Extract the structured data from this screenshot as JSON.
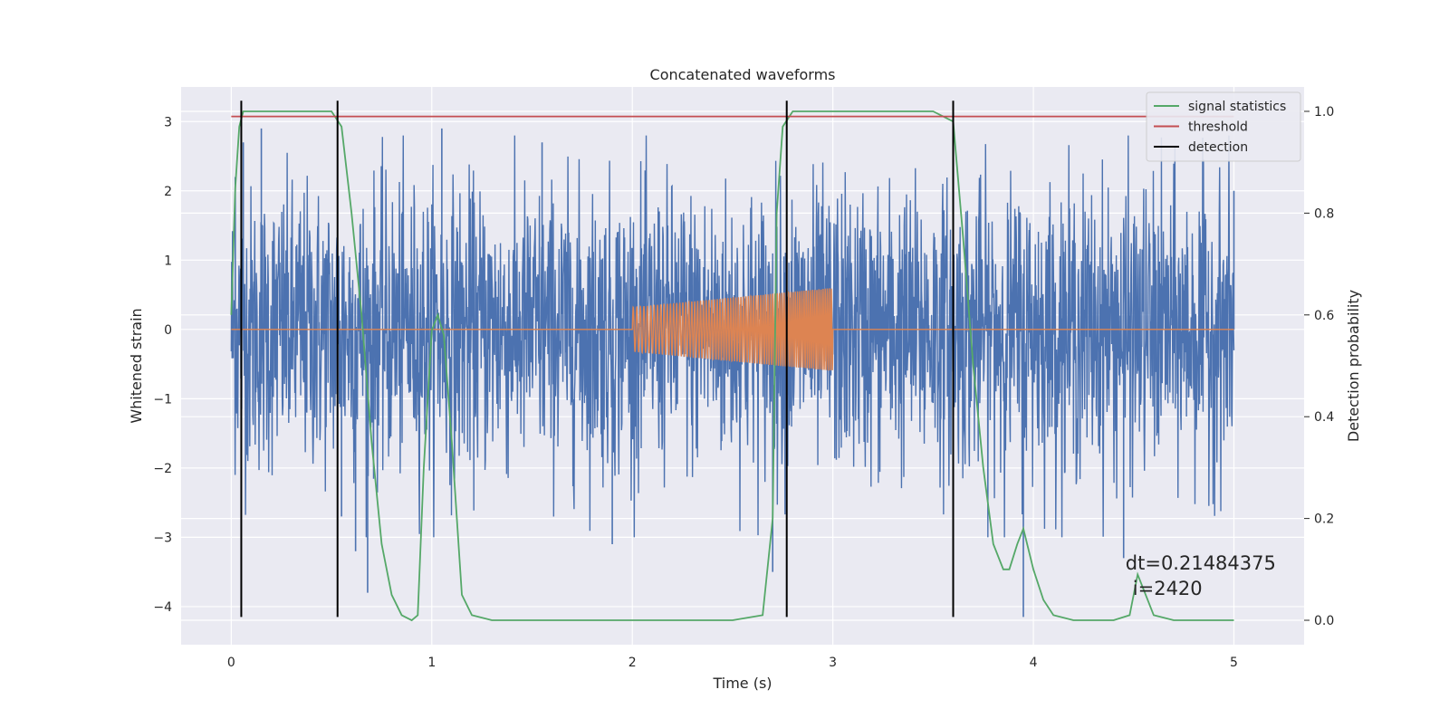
{
  "chart_data": {
    "type": "line",
    "title": "Concatenated waveforms",
    "xlabel": "Time (s)",
    "ylabel": "Whitened strain",
    "ylabel_right": "Detection probability",
    "xlim": [
      -0.25,
      5.35
    ],
    "ylim": [
      -4.55,
      3.5
    ],
    "ylim_right": [
      -0.048,
      1.048
    ],
    "xticks": [
      0,
      1,
      2,
      3,
      4,
      5
    ],
    "yticks": [
      3,
      2,
      1,
      0,
      -1,
      -2,
      -3,
      -4
    ],
    "yticks_right": [
      1.0,
      0.8,
      0.6,
      0.4,
      0.2,
      0.0
    ],
    "xtick_labels": [
      "0",
      "1",
      "2",
      "3",
      "4",
      "5"
    ],
    "ytick_labels": [
      "3",
      "2",
      "1",
      "0",
      "−1",
      "−2",
      "−3",
      "−4"
    ],
    "ytick_right_labels": [
      "1.0",
      "0.8",
      "0.6",
      "0.4",
      "0.2",
      "0.0"
    ],
    "grid": true,
    "legend_position": "top-right",
    "whitened_noise": {
      "color": "#4c72b0",
      "x_range": [
        0,
        5
      ],
      "typical_amplitude": 1.2,
      "extremes": [
        {
          "x": 0.02,
          "y": 2.2
        },
        {
          "x": 0.06,
          "y": 2.7
        },
        {
          "x": 0.15,
          "y": 2.9
        },
        {
          "x": 0.55,
          "y": -2.7
        },
        {
          "x": 0.62,
          "y": -3.2
        },
        {
          "x": 0.68,
          "y": -3.8
        },
        {
          "x": 1.05,
          "y": 2.9
        },
        {
          "x": 1.55,
          "y": 2.7
        },
        {
          "x": 1.9,
          "y": -3.1
        },
        {
          "x": 2.7,
          "y": -3.5
        },
        {
          "x": 3.6,
          "y": -3.6
        },
        {
          "x": 3.95,
          "y": -4.15
        },
        {
          "x": 4.45,
          "y": -3.3
        },
        {
          "x": 5.0,
          "y": 2.0
        }
      ]
    },
    "injected_chirp": {
      "color": "#dd8452",
      "x_range": [
        2.0,
        3.0
      ],
      "amplitude_start": 0.32,
      "amplitude_end": 0.6,
      "baseline": 0.0
    },
    "series": [
      {
        "name": "signal statistics",
        "axis": "right",
        "color": "#55a868",
        "x": [
          0.0,
          0.02,
          0.04,
          0.06,
          0.1,
          0.3,
          0.5,
          0.55,
          0.6,
          0.65,
          0.7,
          0.75,
          0.8,
          0.85,
          0.9,
          0.93,
          0.96,
          1.0,
          1.03,
          1.06,
          1.1,
          1.15,
          1.2,
          1.3,
          1.6,
          2.0,
          2.5,
          2.65,
          2.7,
          2.72,
          2.75,
          2.8,
          3.0,
          3.5,
          3.6,
          3.65,
          3.7,
          3.75,
          3.8,
          3.85,
          3.88,
          3.92,
          3.95,
          4.0,
          4.05,
          4.1,
          4.2,
          4.4,
          4.48,
          4.52,
          4.56,
          4.6,
          4.7,
          5.0
        ],
        "values": [
          0.6,
          0.85,
          0.97,
          1.0,
          1.0,
          1.0,
          1.0,
          0.97,
          0.8,
          0.6,
          0.35,
          0.15,
          0.05,
          0.01,
          0.0,
          0.01,
          0.3,
          0.57,
          0.6,
          0.56,
          0.35,
          0.05,
          0.01,
          0.0,
          0.0,
          0.0,
          0.0,
          0.01,
          0.2,
          0.8,
          0.97,
          1.0,
          1.0,
          1.0,
          0.98,
          0.75,
          0.5,
          0.3,
          0.15,
          0.1,
          0.1,
          0.15,
          0.18,
          0.1,
          0.04,
          0.01,
          0.0,
          0.0,
          0.01,
          0.09,
          0.05,
          0.01,
          0.0,
          0.0
        ]
      },
      {
        "name": "threshold",
        "axis": "right",
        "color": "#c44e52",
        "x": [
          0,
          5
        ],
        "values": [
          0.99,
          0.99
        ]
      },
      {
        "name": "detection",
        "axis": "left",
        "color": "#000000",
        "vlines": [
          0.05,
          0.53,
          2.77,
          3.6
        ],
        "ymin": -4.15,
        "ymax": 3.3
      }
    ],
    "annotation": {
      "text_line1": "dt=0.21484375",
      "text_line2": "i=2420",
      "x": 4.5,
      "y": -3.4
    }
  }
}
